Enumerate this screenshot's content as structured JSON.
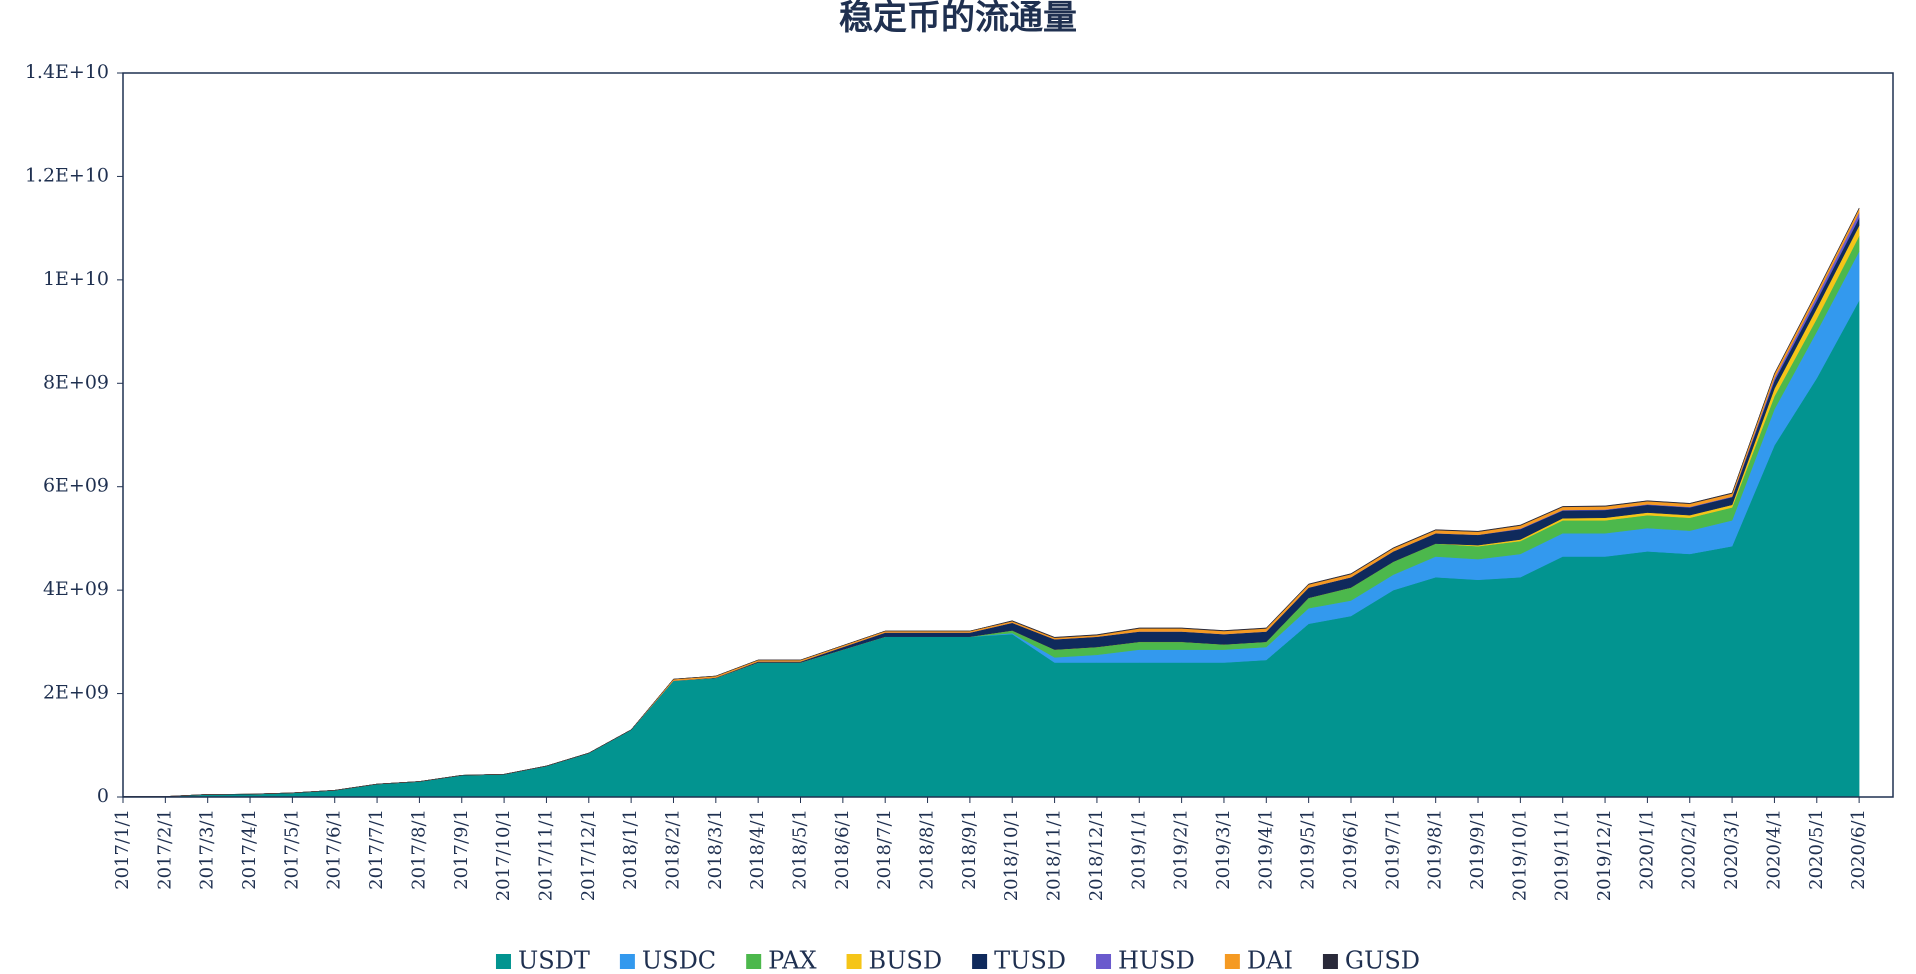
{
  "chart_data": {
    "type": "area",
    "stacked": true,
    "title": "稳定币的流通量",
    "x": [
      "2017/1/1",
      "2017/2/1",
      "2017/3/1",
      "2017/4/1",
      "2017/5/1",
      "2017/6/1",
      "2017/7/1",
      "2017/8/1",
      "2017/9/1",
      "2017/10/1",
      "2017/11/1",
      "2017/12/1",
      "2018/1/1",
      "2018/2/1",
      "2018/3/1",
      "2018/4/1",
      "2018/5/1",
      "2018/6/1",
      "2018/7/1",
      "2018/8/1",
      "2018/9/1",
      "2018/10/1",
      "2018/11/1",
      "2018/12/1",
      "2019/1/1",
      "2019/2/1",
      "2019/3/1",
      "2019/4/1",
      "2019/5/1",
      "2019/6/1",
      "2019/7/1",
      "2019/8/1",
      "2019/9/1",
      "2019/10/1",
      "2019/11/1",
      "2019/12/1",
      "2020/1/1",
      "2020/2/1",
      "2020/3/1",
      "2020/4/1",
      "2020/5/1",
      "2020/6/1"
    ],
    "series": [
      {
        "name": "USDT",
        "color": "#029490",
        "values": [
          10000000.0,
          10000000.0,
          50000000.0,
          55000000.0,
          80000000.0,
          130000000.0,
          250000000.0,
          300000000.0,
          420000000.0,
          440000000.0,
          600000000.0,
          850000000.0,
          1300000000.0,
          2250000000.0,
          2300000000.0,
          2600000000.0,
          2600000000.0,
          2850000000.0,
          3100000000.0,
          3100000000.0,
          3100000000.0,
          3150000000.0,
          2600000000.0,
          2600000000.0,
          2600000000.0,
          2600000000.0,
          2600000000.0,
          2650000000.0,
          3350000000.0,
          3500000000.0,
          4000000000.0,
          4250000000.0,
          4200000000.0,
          4250000000.0,
          4650000000.0,
          4650000000.0,
          4750000000.0,
          4700000000.0,
          4850000000.0,
          6800000000.0,
          8100000000.0,
          9600000000.0
        ]
      },
      {
        "name": "USDC",
        "color": "#3399ee",
        "values": [
          0,
          0,
          0,
          0,
          0,
          0,
          0,
          0,
          0,
          0,
          0,
          0,
          0,
          0,
          0,
          0,
          0,
          0,
          0,
          0,
          0,
          20000000.0,
          100000000.0,
          150000000.0,
          250000000.0,
          250000000.0,
          250000000.0,
          250000000.0,
          300000000.0,
          300000000.0,
          300000000.0,
          400000000.0,
          400000000.0,
          450000000.0,
          450000000.0,
          450000000.0,
          450000000.0,
          450000000.0,
          500000000.0,
          700000000.0,
          900000000.0,
          950000000.0
        ]
      },
      {
        "name": "PAX",
        "color": "#4cb84c",
        "values": [
          0,
          0,
          0,
          0,
          0,
          0,
          0,
          0,
          0,
          0,
          0,
          0,
          0,
          0,
          0,
          0,
          0,
          0,
          0,
          0,
          0,
          50000000.0,
          150000000.0,
          150000000.0,
          150000000.0,
          150000000.0,
          100000000.0,
          100000000.0,
          200000000.0,
          250000000.0,
          250000000.0,
          250000000.0,
          250000000.0,
          250000000.0,
          250000000.0,
          250000000.0,
          250000000.0,
          250000000.0,
          250000000.0,
          250000000.0,
          250000000.0,
          300000000.0
        ]
      },
      {
        "name": "BUSD",
        "color": "#f5c518",
        "values": [
          0,
          0,
          0,
          0,
          0,
          0,
          0,
          0,
          0,
          0,
          0,
          0,
          0,
          0,
          0,
          0,
          0,
          0,
          0,
          0,
          0,
          0,
          0,
          0,
          0,
          0,
          0,
          0,
          0,
          0,
          0,
          0,
          20000000.0,
          30000000.0,
          40000000.0,
          50000000.0,
          50000000.0,
          50000000.0,
          50000000.0,
          150000000.0,
          200000000.0,
          200000000.0
        ]
      },
      {
        "name": "TUSD",
        "color": "#0f2a5c",
        "values": [
          0,
          0,
          0,
          0,
          0,
          0,
          0,
          0,
          0,
          0,
          0,
          0,
          0,
          0,
          10000000.0,
          20000000.0,
          20000000.0,
          50000000.0,
          80000000.0,
          80000000.0,
          80000000.0,
          150000000.0,
          200000000.0,
          200000000.0,
          200000000.0,
          200000000.0,
          200000000.0,
          200000000.0,
          200000000.0,
          200000000.0,
          200000000.0,
          200000000.0,
          200000000.0,
          200000000.0,
          150000000.0,
          150000000.0,
          150000000.0,
          150000000.0,
          150000000.0,
          150000000.0,
          150000000.0,
          150000000.0
        ]
      },
      {
        "name": "HUSD",
        "color": "#6a5acd",
        "values": [
          0,
          0,
          0,
          0,
          0,
          0,
          0,
          0,
          0,
          0,
          0,
          0,
          0,
          0,
          0,
          0,
          0,
          0,
          0,
          0,
          0,
          0,
          0,
          0,
          0,
          0,
          0,
          0,
          0,
          0,
          0,
          0,
          0,
          10000000.0,
          10000000.0,
          10000000.0,
          10000000.0,
          10000000.0,
          10000000.0,
          50000000.0,
          80000000.0,
          100000000.0
        ]
      },
      {
        "name": "DAI",
        "color": "#f59a23",
        "values": [
          0,
          0,
          0,
          0,
          0,
          0,
          0,
          0,
          0,
          0,
          0,
          0,
          0,
          30000000.0,
          30000000.0,
          30000000.0,
          30000000.0,
          30000000.0,
          30000000.0,
          30000000.0,
          30000000.0,
          30000000.0,
          30000000.0,
          30000000.0,
          60000000.0,
          60000000.0,
          60000000.0,
          60000000.0,
          60000000.0,
          60000000.0,
          60000000.0,
          60000000.0,
          60000000.0,
          60000000.0,
          60000000.0,
          60000000.0,
          60000000.0,
          60000000.0,
          60000000.0,
          80000000.0,
          80000000.0,
          80000000.0
        ]
      },
      {
        "name": "GUSD",
        "color": "#2a2a3a",
        "values": [
          0,
          0,
          0,
          0,
          0,
          0,
          0,
          0,
          0,
          0,
          0,
          0,
          0,
          0,
          0,
          0,
          0,
          0,
          0,
          0,
          0,
          10000000.0,
          10000000.0,
          10000000.0,
          10000000.0,
          10000000.0,
          10000000.0,
          10000000.0,
          10000000.0,
          10000000.0,
          10000000.0,
          10000000.0,
          10000000.0,
          10000000.0,
          10000000.0,
          10000000.0,
          10000000.0,
          10000000.0,
          10000000.0,
          10000000.0,
          10000000.0,
          10000000.0
        ]
      }
    ],
    "ylim": [
      0,
      14000000000.0
    ],
    "yticks": [
      0,
      {
        "value": 2000000000.0,
        "label": "2E+09"
      },
      {
        "value": 4000000000.0,
        "label": "4E+09"
      },
      {
        "value": 6000000000.0,
        "label": "6E+09"
      },
      {
        "value": 8000000000.0,
        "label": "8E+09"
      },
      {
        "value": 10000000000.0,
        "label": "1E+10"
      },
      {
        "value": 12000000000.0,
        "label": "1.2E+10"
      },
      {
        "value": 14000000000.0,
        "label": "1.4E+10"
      }
    ],
    "legend": "bottom"
  }
}
